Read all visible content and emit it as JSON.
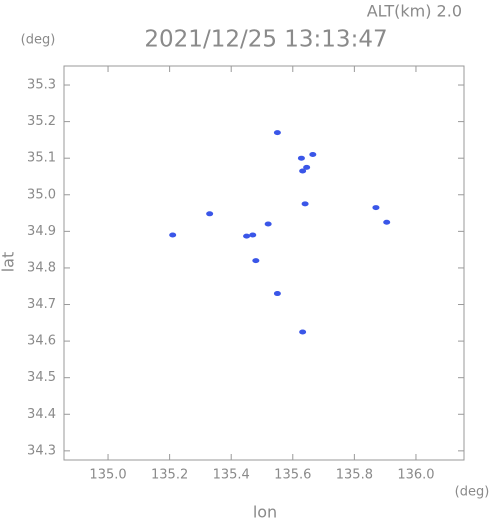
{
  "chart_data": {
    "type": "scatter",
    "title": "2021/12/25 13:13:47",
    "subtitle": "ALT(km) 2.0",
    "x_label": "lon",
    "y_label": "lat",
    "x_unit": "(deg)",
    "y_unit": "(deg)",
    "color": "#3a56e8",
    "x": [
      135.55,
      135.628,
      135.665,
      135.632,
      135.645,
      135.64,
      135.87,
      135.905,
      135.21,
      135.33,
      135.45,
      135.47,
      135.52,
      135.48,
      135.55,
      135.632
    ],
    "values": [
      35.17,
      35.1,
      35.11,
      35.065,
      35.075,
      34.975,
      34.965,
      34.925,
      34.89,
      34.948,
      34.887,
      34.89,
      34.92,
      34.82,
      34.73,
      34.625
    ],
    "xlim": [
      134.857,
      136.156
    ],
    "ylim": [
      34.275,
      35.352
    ],
    "xticks": [
      {
        "value": 135,
        "label": "135.0"
      },
      {
        "value": 135.2,
        "label": "135.2"
      },
      {
        "value": 135.4,
        "label": "135.4"
      },
      {
        "value": 135.6,
        "label": "135.6"
      },
      {
        "value": 135.8,
        "label": "135.8"
      },
      {
        "value": 136,
        "label": "136.0"
      }
    ],
    "yticks": [
      34.3,
      34.4,
      34.5,
      34.6,
      34.7,
      34.8,
      34.9,
      {
        "value": 35,
        "label": "35.0"
      },
      35.1,
      35.2,
      35.3
    ]
  }
}
